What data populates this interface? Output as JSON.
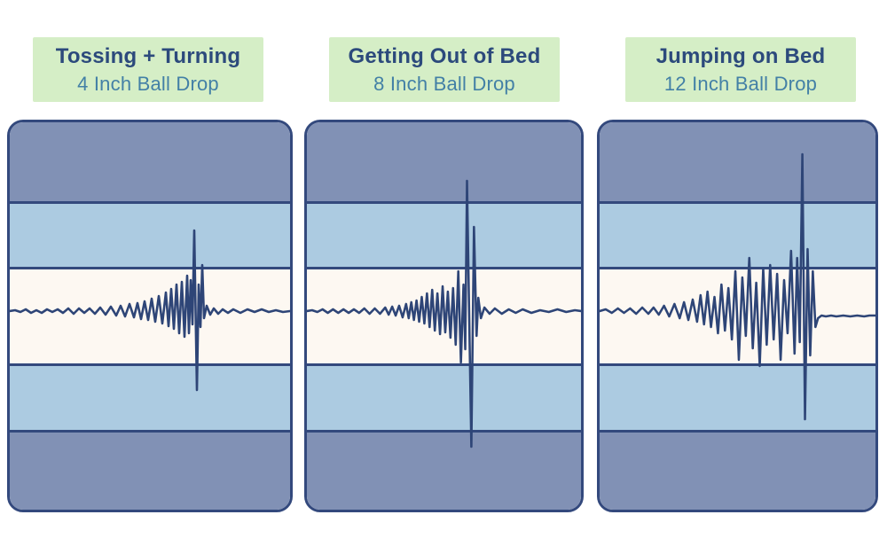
{
  "colors": {
    "label_background": "#d5eec6",
    "title_text": "#2c4a7c",
    "subtitle_text": "#4380a6",
    "panel_border": "#33497d",
    "band_dark": "#8191b5",
    "band_light": "#accbe1",
    "band_cream": "#fdf8f2",
    "waveform_stroke": "#2e4577",
    "page_background": "#ffffff"
  },
  "panels": [
    {
      "title": "Tossing + Turning",
      "subtitle": "4 Inch Ball Drop",
      "waveform_width": 316,
      "waveform_height": 437,
      "waveform_centerline": 213,
      "waveform": [
        [
          0,
          0
        ],
        [
          6,
          -1
        ],
        [
          12,
          1
        ],
        [
          18,
          -2
        ],
        [
          24,
          2
        ],
        [
          30,
          -1
        ],
        [
          36,
          2
        ],
        [
          42,
          -2
        ],
        [
          48,
          1
        ],
        [
          54,
          -2
        ],
        [
          60,
          2
        ],
        [
          66,
          -3
        ],
        [
          72,
          3
        ],
        [
          78,
          -3
        ],
        [
          84,
          2
        ],
        [
          90,
          -3
        ],
        [
          96,
          3
        ],
        [
          102,
          -4
        ],
        [
          108,
          4
        ],
        [
          114,
          -5
        ],
        [
          120,
          5
        ],
        [
          125,
          -6
        ],
        [
          130,
          6
        ],
        [
          135,
          -8
        ],
        [
          140,
          7
        ],
        [
          144,
          -9
        ],
        [
          148,
          9
        ],
        [
          152,
          -11
        ],
        [
          156,
          10
        ],
        [
          160,
          -14
        ],
        [
          164,
          12
        ],
        [
          168,
          -17
        ],
        [
          172,
          14
        ],
        [
          176,
          -21
        ],
        [
          179,
          17
        ],
        [
          182,
          -25
        ],
        [
          185,
          20
        ],
        [
          188,
          -30
        ],
        [
          191,
          25
        ],
        [
          194,
          -33
        ],
        [
          197,
          29
        ],
        [
          200,
          -40
        ],
        [
          202,
          25
        ],
        [
          204,
          -35
        ],
        [
          206,
          15
        ],
        [
          208,
          -91
        ],
        [
          211,
          89
        ],
        [
          213,
          -30
        ],
        [
          215,
          18
        ],
        [
          217,
          -52
        ],
        [
          219,
          8
        ],
        [
          222,
          -6
        ],
        [
          226,
          4
        ],
        [
          230,
          -3
        ],
        [
          235,
          3
        ],
        [
          240,
          -2
        ],
        [
          246,
          2
        ],
        [
          252,
          -2
        ],
        [
          260,
          2
        ],
        [
          268,
          -2
        ],
        [
          276,
          1
        ],
        [
          284,
          -2
        ],
        [
          292,
          1
        ],
        [
          300,
          -1
        ],
        [
          308,
          1
        ],
        [
          316,
          0
        ]
      ]
    },
    {
      "title": "Getting Out of Bed",
      "subtitle": "8 Inch Ball Drop",
      "waveform_width": 315,
      "waveform_height": 437,
      "waveform_centerline": 213,
      "waveform": [
        [
          0,
          0
        ],
        [
          6,
          -1
        ],
        [
          12,
          1
        ],
        [
          18,
          -2
        ],
        [
          24,
          2
        ],
        [
          30,
          -2
        ],
        [
          36,
          2
        ],
        [
          42,
          -2
        ],
        [
          48,
          2
        ],
        [
          54,
          -2
        ],
        [
          60,
          2
        ],
        [
          66,
          -3
        ],
        [
          72,
          3
        ],
        [
          78,
          -3
        ],
        [
          84,
          3
        ],
        [
          90,
          -4
        ],
        [
          94,
          4
        ],
        [
          98,
          -5
        ],
        [
          102,
          5
        ],
        [
          106,
          -6
        ],
        [
          110,
          7
        ],
        [
          114,
          -8
        ],
        [
          117,
          8
        ],
        [
          120,
          -10
        ],
        [
          123,
          10
        ],
        [
          126,
          -12
        ],
        [
          129,
          12
        ],
        [
          132,
          -16
        ],
        [
          135,
          14
        ],
        [
          138,
          -20
        ],
        [
          141,
          18
        ],
        [
          144,
          -24
        ],
        [
          147,
          22
        ],
        [
          150,
          -20
        ],
        [
          153,
          26
        ],
        [
          156,
          -28
        ],
        [
          159,
          24
        ],
        [
          162,
          -22
        ],
        [
          165,
          30
        ],
        [
          168,
          -26
        ],
        [
          171,
          38
        ],
        [
          174,
          -45
        ],
        [
          177,
          58
        ],
        [
          180,
          -30
        ],
        [
          182,
          43
        ],
        [
          184,
          -147
        ],
        [
          187,
          35
        ],
        [
          189,
          153
        ],
        [
          192,
          -95
        ],
        [
          195,
          28
        ],
        [
          197,
          -15
        ],
        [
          200,
          8
        ],
        [
          204,
          -4
        ],
        [
          210,
          3
        ],
        [
          216,
          -3
        ],
        [
          224,
          3
        ],
        [
          232,
          -2
        ],
        [
          240,
          2
        ],
        [
          248,
          -2
        ],
        [
          258,
          2
        ],
        [
          268,
          -1
        ],
        [
          278,
          1
        ],
        [
          288,
          -2
        ],
        [
          298,
          1
        ],
        [
          308,
          -1
        ],
        [
          315,
          0
        ]
      ]
    },
    {
      "title": "Jumping on Bed",
      "subtitle": "12 Inch Ball Drop",
      "waveform_width": 317,
      "waveform_height": 437,
      "waveform_centerline": 213,
      "waveform": [
        [
          0,
          0
        ],
        [
          7,
          -2
        ],
        [
          14,
          2
        ],
        [
          21,
          -3
        ],
        [
          28,
          2
        ],
        [
          35,
          -3
        ],
        [
          42,
          3
        ],
        [
          49,
          -4
        ],
        [
          56,
          3
        ],
        [
          62,
          -4
        ],
        [
          68,
          4
        ],
        [
          74,
          -6
        ],
        [
          80,
          6
        ],
        [
          86,
          -8
        ],
        [
          92,
          8
        ],
        [
          97,
          -10
        ],
        [
          102,
          10
        ],
        [
          107,
          -13
        ],
        [
          112,
          12
        ],
        [
          116,
          -18
        ],
        [
          120,
          15
        ],
        [
          124,
          -22
        ],
        [
          128,
          18
        ],
        [
          132,
          -16
        ],
        [
          136,
          25
        ],
        [
          140,
          -30
        ],
        [
          144,
          22
        ],
        [
          148,
          -26
        ],
        [
          152,
          32
        ],
        [
          156,
          -45
        ],
        [
          160,
          55
        ],
        [
          164,
          -38
        ],
        [
          168,
          28
        ],
        [
          172,
          -60
        ],
        [
          176,
          42
        ],
        [
          180,
          -32
        ],
        [
          184,
          62
        ],
        [
          188,
          -48
        ],
        [
          192,
          38
        ],
        [
          196,
          -52
        ],
        [
          200,
          32
        ],
        [
          204,
          -42
        ],
        [
          208,
          55
        ],
        [
          212,
          -35
        ],
        [
          216,
          25
        ],
        [
          220,
          -68
        ],
        [
          224,
          48
        ],
        [
          227,
          -60
        ],
        [
          230,
          35
        ],
        [
          233,
          -177
        ],
        [
          236,
          122
        ],
        [
          239,
          -70
        ],
        [
          242,
          50
        ],
        [
          245,
          -45
        ],
        [
          248,
          18
        ],
        [
          251,
          8
        ],
        [
          255,
          5
        ],
        [
          260,
          6
        ],
        [
          266,
          5
        ],
        [
          272,
          6
        ],
        [
          280,
          5
        ],
        [
          288,
          6
        ],
        [
          296,
          5
        ],
        [
          304,
          6
        ],
        [
          310,
          5
        ],
        [
          317,
          5
        ]
      ]
    }
  ]
}
